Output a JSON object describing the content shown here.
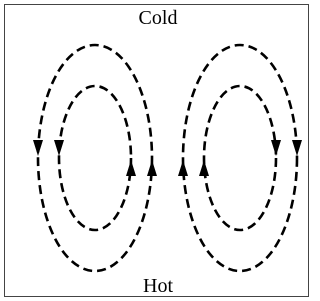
{
  "labels": {
    "top": "Cold",
    "bottom": "Hot"
  }
}
